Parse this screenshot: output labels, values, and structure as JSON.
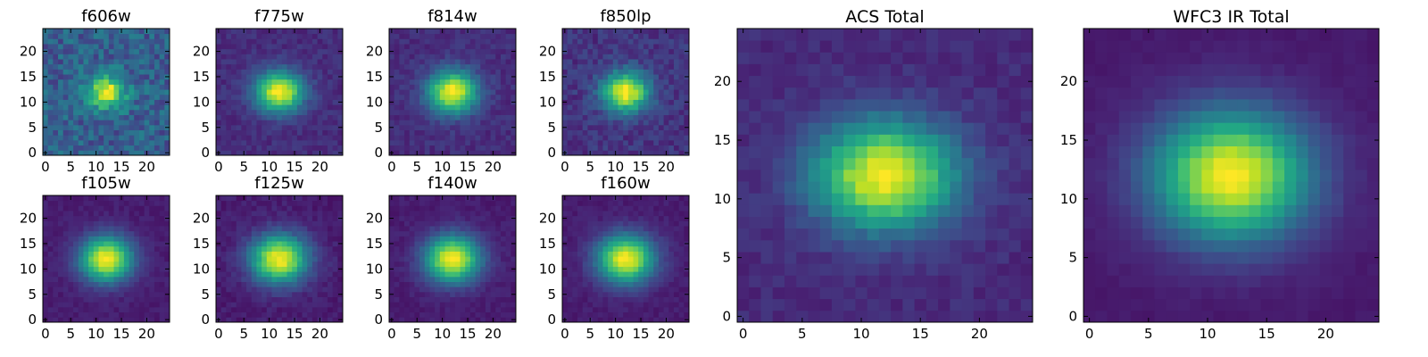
{
  "chart_data": {
    "type": "heatmap",
    "colormap": "viridis",
    "grid": false,
    "pixel_extent": [
      0,
      24
    ],
    "panels": [
      {
        "title": "f606w",
        "xticks": [
          "0",
          "5",
          "10",
          "15",
          "20"
        ],
        "yticks": [
          "0",
          "5",
          "10",
          "15",
          "20"
        ],
        "center": [
          12,
          12
        ],
        "sigma": [
          2.6,
          2.3
        ],
        "background": 0.3,
        "noise": 0.13
      },
      {
        "title": "f775w",
        "xticks": [
          "0",
          "5",
          "10",
          "15",
          "20"
        ],
        "yticks": [
          "0",
          "5",
          "10",
          "15",
          "20"
        ],
        "center": [
          12,
          12
        ],
        "sigma": [
          3.3,
          2.8
        ],
        "background": 0.13,
        "noise": 0.05
      },
      {
        "title": "f814w",
        "xticks": [
          "0",
          "5",
          "10",
          "15",
          "20"
        ],
        "yticks": [
          "0",
          "5",
          "10",
          "15",
          "20"
        ],
        "center": [
          12,
          12
        ],
        "sigma": [
          3.4,
          2.9
        ],
        "background": 0.13,
        "noise": 0.05
      },
      {
        "title": "f850lp",
        "xticks": [
          "0",
          "5",
          "10",
          "15",
          "20"
        ],
        "yticks": [
          "0",
          "5",
          "10",
          "15",
          "20"
        ],
        "center": [
          12,
          12
        ],
        "sigma": [
          3.2,
          2.8
        ],
        "background": 0.15,
        "noise": 0.07
      },
      {
        "title": "f105w",
        "xticks": [
          "0",
          "5",
          "10",
          "15",
          "20"
        ],
        "yticks": [
          "0",
          "5",
          "10",
          "15",
          "20"
        ],
        "center": [
          12,
          12
        ],
        "sigma": [
          3.6,
          3.1
        ],
        "background": 0.08,
        "noise": 0.03
      },
      {
        "title": "f125w",
        "xticks": [
          "0",
          "5",
          "10",
          "15",
          "20"
        ],
        "yticks": [
          "0",
          "5",
          "10",
          "15",
          "20"
        ],
        "center": [
          12,
          12
        ],
        "sigma": [
          3.9,
          3.3
        ],
        "background": 0.08,
        "noise": 0.04
      },
      {
        "title": "f140w",
        "xticks": [
          "0",
          "5",
          "10",
          "15",
          "20"
        ],
        "yticks": [
          "0",
          "5",
          "10",
          "15",
          "20"
        ],
        "center": [
          12,
          12
        ],
        "sigma": [
          3.8,
          3.2
        ],
        "background": 0.08,
        "noise": 0.03
      },
      {
        "title": "f160w",
        "xticks": [
          "0",
          "5",
          "10",
          "15",
          "20"
        ],
        "yticks": [
          "0",
          "5",
          "10",
          "15",
          "20"
        ],
        "center": [
          12,
          12
        ],
        "sigma": [
          3.9,
          3.3
        ],
        "background": 0.08,
        "noise": 0.03
      },
      {
        "title": "ACS Total",
        "xticks": [
          "0",
          "5",
          "10",
          "15",
          "20"
        ],
        "yticks": [
          "0",
          "5",
          "10",
          "15",
          "20"
        ],
        "center": [
          12,
          12
        ],
        "sigma": [
          4.2,
          3.2
        ],
        "background": 0.12,
        "noise": 0.04
      },
      {
        "title": "WFC3 IR Total",
        "xticks": [
          "0",
          "5",
          "10",
          "15",
          "20"
        ],
        "yticks": [
          "0",
          "5",
          "10",
          "15",
          "20"
        ],
        "center": [
          12,
          12
        ],
        "sigma": [
          4.6,
          3.8
        ],
        "background": 0.07,
        "noise": 0.015
      }
    ]
  }
}
